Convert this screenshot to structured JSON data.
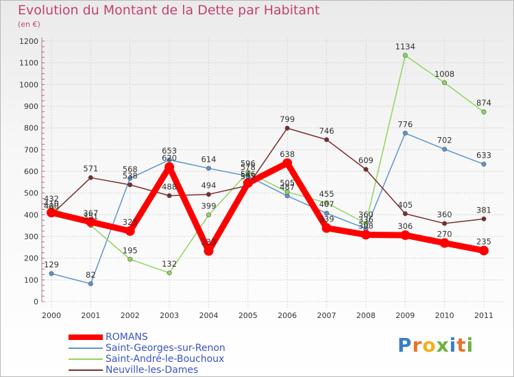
{
  "header": {
    "title": "Evolution du Montant de la Dette par Habitant",
    "unit": "(en €)"
  },
  "logo": {
    "text": "Proxiti",
    "letters": [
      "P",
      "r",
      "o",
      "x",
      "i",
      "t",
      "i"
    ],
    "colors": [
      "#3a7fc4",
      "#e8732a",
      "#f2b21b",
      "#6cb33f",
      "#3a7fc4",
      "#e8732a",
      "#6cb33f"
    ]
  },
  "chart_data": {
    "type": "line",
    "x": [
      "2000",
      "2001",
      "2002",
      "2003",
      "2004",
      "2005",
      "2006",
      "2007",
      "2008",
      "2009",
      "2010",
      "2011"
    ],
    "ylim": [
      0,
      1200
    ],
    "yticks": [
      0,
      100,
      200,
      300,
      400,
      500,
      600,
      700,
      800,
      900,
      1000,
      1100,
      1200
    ],
    "grid": true,
    "legend": "bottom-left",
    "series": [
      {
        "name": "ROMANS",
        "color": "#ff0000",
        "emphasis": true,
        "values": [
          410,
          367,
          325,
          620,
          233,
          546,
          638,
          339,
          308,
          306,
          270,
          235
        ]
      },
      {
        "name": "Saint-Georges-sur-Renon",
        "color": "#5b94cf",
        "emphasis": false,
        "values": [
          129,
          82,
          568,
          653,
          614,
          578,
          487,
          407,
          336,
          776,
          702,
          633
        ]
      },
      {
        "name": "Saint-André-le-Bouchoux",
        "color": "#8fd45a",
        "emphasis": false,
        "values": [
          432,
          351,
          195,
          132,
          399,
          596,
          505,
          455,
          360,
          1134,
          1008,
          874
        ]
      },
      {
        "name": "Neuville-les-Dames",
        "color": "#7a2c2c",
        "emphasis": false,
        "values": [
          400,
          571,
          538,
          488,
          494,
          535,
          799,
          746,
          609,
          405,
          360,
          381
        ]
      }
    ]
  }
}
